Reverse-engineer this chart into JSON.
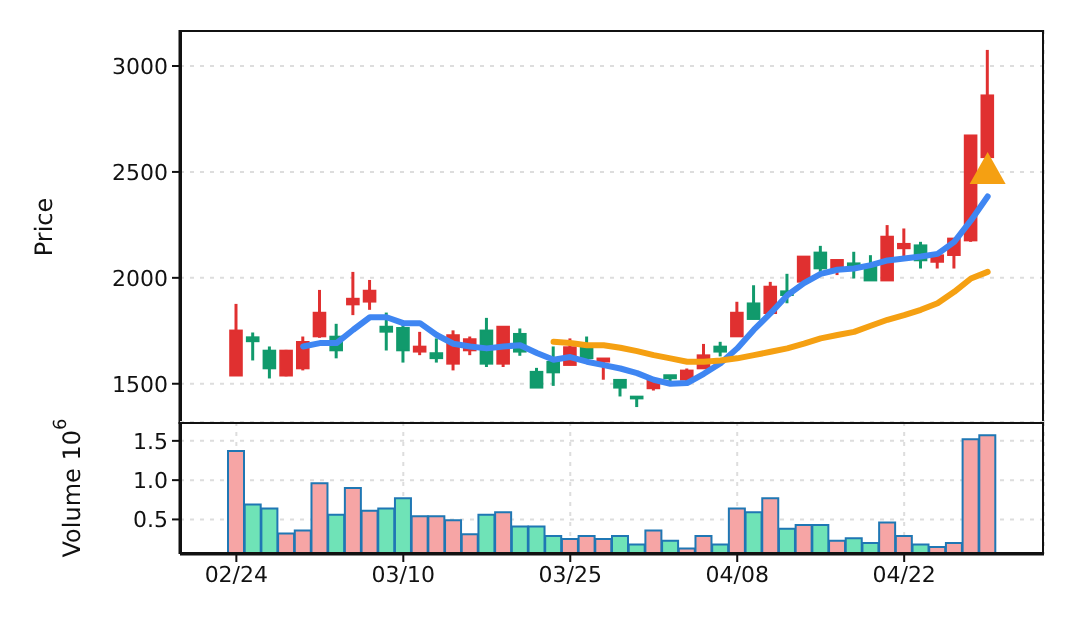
{
  "chart_data": [
    {
      "type": "candlestick",
      "ylabel": "Price",
      "ylim": [
        1310,
        3170
      ],
      "yticks": [
        1500,
        2000,
        2500,
        3000
      ],
      "grid": true,
      "tick_labels": "y",
      "categories": [
        null,
        null,
        null,
        null,
        null,
        null,
        null,
        null,
        null,
        null,
        null,
        null,
        null,
        null,
        null,
        null,
        null,
        null,
        null,
        null,
        null,
        null,
        null,
        null,
        null,
        null,
        null,
        null,
        null,
        null,
        null,
        null,
        null,
        null,
        null,
        null,
        null,
        null,
        null,
        null,
        null,
        null,
        null,
        null,
        null,
        null
      ],
      "ohlc": [
        [
          1538,
          1877,
          1538,
          1752
        ],
        [
          1720,
          1742,
          1610,
          1700
        ],
        [
          1657,
          1676,
          1525,
          1572
        ],
        [
          1538,
          1660,
          1535,
          1657
        ],
        [
          1572,
          1723,
          1563,
          1698
        ],
        [
          1723,
          1943,
          1717,
          1836
        ],
        [
          1723,
          1783,
          1620,
          1657
        ],
        [
          1874,
          2028,
          1824,
          1902
        ],
        [
          1887,
          1990,
          1849,
          1940
        ],
        [
          1770,
          1836,
          1657,
          1745
        ],
        [
          1764,
          1792,
          1600,
          1657
        ],
        [
          1651,
          1745,
          1635,
          1676
        ],
        [
          1645,
          1714,
          1600,
          1620
        ],
        [
          1594,
          1752,
          1563,
          1730
        ],
        [
          1657,
          1723,
          1635,
          1711
        ],
        [
          1752,
          1811,
          1579,
          1594
        ],
        [
          1594,
          1770,
          1579,
          1770
        ],
        [
          1736,
          1761,
          1632,
          1651
        ],
        [
          1557,
          1575,
          1481,
          1481
        ],
        [
          1604,
          1676,
          1490,
          1553
        ],
        [
          1588,
          1714,
          1588,
          1673
        ],
        [
          1673,
          1723,
          1604,
          1620
        ],
        [
          1604,
          1620,
          1519,
          1620
        ],
        [
          1519,
          1519,
          1440,
          1481
        ],
        [
          1440,
          1440,
          1390,
          1430
        ],
        [
          1478,
          1531,
          1468,
          1519
        ],
        [
          1541,
          1541,
          1500,
          1525
        ],
        [
          1519,
          1572,
          1510,
          1563
        ],
        [
          1572,
          1688,
          1572,
          1635
        ],
        [
          1676,
          1698,
          1629,
          1651
        ],
        [
          1723,
          1887,
          1723,
          1836
        ],
        [
          1880,
          1965,
          1805,
          1805
        ],
        [
          1833,
          1981,
          1824,
          1959
        ],
        [
          1937,
          2019,
          1880,
          1918
        ],
        [
          1981,
          2101,
          1972,
          2101
        ],
        [
          2120,
          2151,
          2013,
          2044
        ],
        [
          2035,
          2085,
          2013,
          2085
        ],
        [
          2069,
          2123,
          1997,
          2050
        ],
        [
          2060,
          2107,
          1987,
          1987
        ],
        [
          1987,
          2249,
          1987,
          2195
        ],
        [
          2139,
          2233,
          2091,
          2161
        ],
        [
          2154,
          2170,
          2044,
          2082
        ],
        [
          2075,
          2107,
          2044,
          2107
        ],
        [
          2107,
          2186,
          2044,
          2186
        ],
        [
          2176,
          2673,
          2170,
          2673
        ],
        [
          2569,
          3076,
          2569,
          2862
        ]
      ],
      "colors": [
        "#e03030",
        "#119a6c",
        "#119a6c",
        "#e03030",
        "#e03030",
        "#e03030",
        "#119a6c",
        "#e03030",
        "#e03030",
        "#119a6c",
        "#119a6c",
        "#e03030",
        "#119a6c",
        "#e03030",
        "#e03030",
        "#119a6c",
        "#e03030",
        "#119a6c",
        "#119a6c",
        "#119a6c",
        "#e03030",
        "#119a6c",
        "#e03030",
        "#119a6c",
        "#119a6c",
        "#e03030",
        "#119a6c",
        "#e03030",
        "#e03030",
        "#119a6c",
        "#e03030",
        "#119a6c",
        "#e03030",
        "#119a6c",
        "#e03030",
        "#119a6c",
        "#e03030",
        "#119a6c",
        "#119a6c",
        "#e03030",
        "#e03030",
        "#119a6c",
        "#e03030",
        "#e03030",
        "#e03030",
        "#e03030"
      ],
      "series": [
        {
          "type": "line",
          "color": "#3f86f2",
          "values": [
            null,
            null,
            null,
            null,
            1676,
            1692,
            1692,
            1755,
            1814,
            1814,
            1786,
            1786,
            1730,
            1689,
            1676,
            1667,
            1676,
            1682,
            1645,
            1613,
            1626,
            1604,
            1588,
            1572,
            1550,
            1519,
            1500,
            1503,
            1547,
            1597,
            1667,
            1755,
            1833,
            1918,
            1975,
            2019,
            2038,
            2044,
            2060,
            2082,
            2091,
            2101,
            2113,
            2170,
            2271,
            2384
          ]
        },
        {
          "type": "line",
          "color": "#f5a012",
          "values": [
            null,
            null,
            null,
            null,
            null,
            null,
            null,
            null,
            null,
            null,
            null,
            null,
            null,
            null,
            null,
            null,
            null,
            null,
            null,
            1698,
            1692,
            1682,
            1682,
            1670,
            1654,
            1635,
            1620,
            1604,
            1604,
            1610,
            1620,
            1635,
            1651,
            1667,
            1689,
            1714,
            1730,
            1745,
            1774,
            1802,
            1824,
            1849,
            1880,
            1934,
            1997,
            2028
          ]
        },
        {
          "type": "scatter",
          "marker": "triangle",
          "color": "#f5a012",
          "values": [
            null,
            null,
            null,
            null,
            null,
            null,
            null,
            null,
            null,
            null,
            null,
            null,
            null,
            null,
            null,
            null,
            null,
            null,
            null,
            null,
            null,
            null,
            null,
            null,
            null,
            null,
            null,
            null,
            null,
            null,
            null,
            null,
            null,
            null,
            null,
            null,
            null,
            null,
            null,
            null,
            null,
            null,
            null,
            null,
            null,
            2500
          ]
        }
      ]
    },
    {
      "type": "bar",
      "ylabel": "Volume  10$^{6}$",
      "ylim": [
        0.06,
        1.74
      ],
      "yticks": [
        {
          "value": 0.5,
          "label": "0.5"
        },
        {
          "value": 1.0,
          "label": "1.0"
        },
        {
          "value": 1.5,
          "label": "1.5"
        }
      ],
      "grid": true,
      "categories": [
        "02/24",
        null,
        null,
        null,
        null,
        null,
        null,
        null,
        null,
        null,
        "03/10",
        null,
        null,
        null,
        null,
        null,
        null,
        null,
        null,
        null,
        "03/25",
        null,
        null,
        null,
        null,
        null,
        null,
        null,
        null,
        null,
        "04/08",
        null,
        null,
        null,
        null,
        null,
        null,
        null,
        null,
        null,
        "04/22",
        null,
        null,
        null,
        null,
        null
      ],
      "values": [
        1.37,
        0.69,
        0.64,
        0.32,
        0.36,
        0.96,
        0.56,
        0.9,
        0.61,
        0.64,
        0.77,
        0.54,
        0.54,
        0.49,
        0.31,
        0.56,
        0.59,
        0.41,
        0.41,
        0.29,
        0.25,
        0.29,
        0.25,
        0.29,
        0.18,
        0.36,
        0.23,
        0.13,
        0.29,
        0.18,
        0.64,
        0.59,
        0.77,
        0.38,
        0.43,
        0.43,
        0.23,
        0.26,
        0.2,
        0.46,
        0.29,
        0.18,
        0.15,
        0.2,
        1.52,
        1.57
      ],
      "colors": [
        "#f6a5a5",
        "#6fe3b7",
        "#6fe3b7",
        "#f6a5a5",
        "#f6a5a5",
        "#f6a5a5",
        "#6fe3b7",
        "#f6a5a5",
        "#f6a5a5",
        "#6fe3b7",
        "#6fe3b7",
        "#f6a5a5",
        "#f6a5a5",
        "#f6a5a5",
        "#f6a5a5",
        "#6fe3b7",
        "#f6a5a5",
        "#6fe3b7",
        "#6fe3b7",
        "#6fe3b7",
        "#f6a5a5",
        "#f6a5a5",
        "#f6a5a5",
        "#6fe3b7",
        "#6fe3b7",
        "#f6a5a5",
        "#6fe3b7",
        "#f6a5a5",
        "#f6a5a5",
        "#6fe3b7",
        "#f6a5a5",
        "#6fe3b7",
        "#f6a5a5",
        "#6fe3b7",
        "#f6a5a5",
        "#6fe3b7",
        "#f6a5a5",
        "#6fe3b7",
        "#6fe3b7",
        "#f6a5a5",
        "#f6a5a5",
        "#6fe3b7",
        "#f6a5a5",
        "#f6a5a5",
        "#f6a5a5",
        "#f6a5a5"
      ]
    }
  ]
}
